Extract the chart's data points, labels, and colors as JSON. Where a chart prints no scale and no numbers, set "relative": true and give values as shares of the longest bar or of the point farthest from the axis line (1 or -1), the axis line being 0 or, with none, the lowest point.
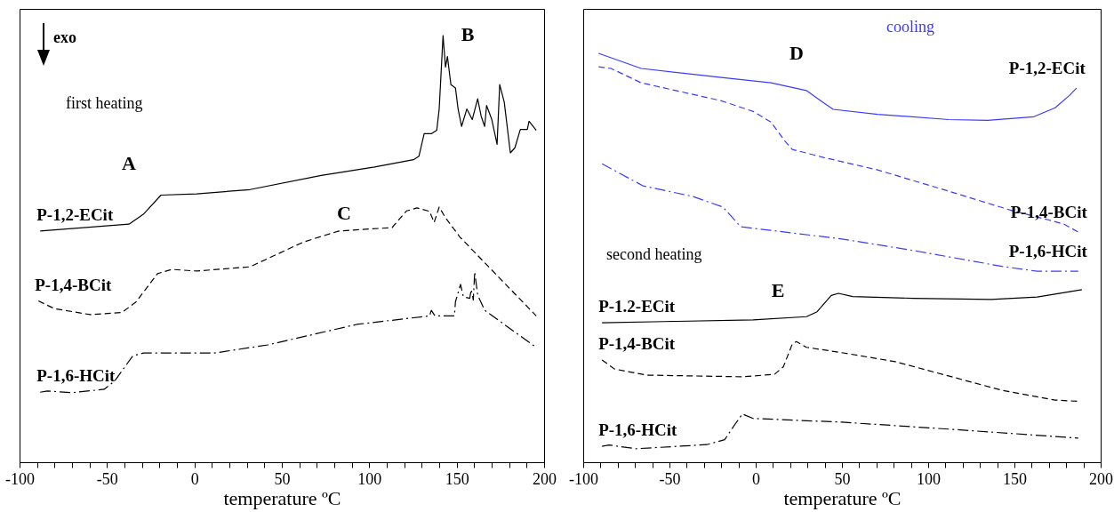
{
  "chart_data": [
    {
      "type": "line",
      "relative": true,
      "xlabel": "temperature ºC",
      "xlim": [
        -100,
        200
      ],
      "xticks": [
        -100,
        {
          "value": -90,
          "label": null
        },
        {
          "value": -80,
          "label": null
        },
        {
          "value": -70,
          "label": null
        },
        {
          "value": -60,
          "label": null
        },
        -50,
        {
          "value": -40,
          "label": null
        },
        {
          "value": -30,
          "label": null
        },
        {
          "value": -20,
          "label": null
        },
        {
          "value": -10,
          "label": null
        },
        0,
        {
          "value": 10,
          "label": null
        },
        {
          "value": 20,
          "label": null
        },
        {
          "value": 30,
          "label": null
        },
        {
          "value": 40,
          "label": null
        },
        50,
        {
          "value": 60,
          "label": null
        },
        {
          "value": 70,
          "label": null
        },
        {
          "value": 80,
          "label": null
        },
        {
          "value": 90,
          "label": null
        },
        100,
        {
          "value": 110,
          "label": null
        },
        {
          "value": 120,
          "label": null
        },
        {
          "value": 130,
          "label": null
        },
        {
          "value": 140,
          "label": null
        },
        150,
        {
          "value": 160,
          "label": null
        },
        {
          "value": 170,
          "label": null
        },
        {
          "value": 180,
          "label": null
        },
        {
          "value": 190,
          "label": null
        },
        200
      ],
      "annotations": [
        "exo",
        "first heating",
        "A",
        "B",
        "C"
      ],
      "series": [
        {
          "name": "P-1,2-ECit",
          "color": "#000000",
          "line_style": "solid",
          "x": [
            -88.2,
            -37.4,
            -29.2,
            -19.1,
            1.3,
            31.8,
            72.5,
            103,
            125.3,
            128.4,
            131.4,
            135.5,
            138.6,
            140,
            142.2,
            143.6,
            144.7,
            146.7,
            149.3,
            150.8,
            152.8,
            155.8,
            158.9,
            162,
            164,
            166,
            167.1,
            170.1,
            173.1,
            174.6,
            177.2,
            180.7,
            183.3,
            186.4,
            190.4,
            191.4,
            195.5
          ],
          "values": [
            0.542,
            0.558,
            0.581,
            0.626,
            0.629,
            0.639,
            0.672,
            0.692,
            0.709,
            0.717,
            0.77,
            0.77,
            0.778,
            0.828,
            1.0,
            0.926,
            0.951,
            0.885,
            0.877,
            0.828,
            0.787,
            0.828,
            0.803,
            0.852,
            0.811,
            0.787,
            0.836,
            0.803,
            0.745,
            0.885,
            0.844,
            0.725,
            0.737,
            0.78,
            0.78,
            0.799,
            0.778
          ]
        },
        {
          "name": "P-1,4-BCit",
          "color": "#000000",
          "line_style": "dashed",
          "x": [
            -89.2,
            -80.1,
            -59.7,
            -41.4,
            -33.3,
            -21.1,
            -13,
            1.3,
            31.8,
            62.3,
            82.6,
            113.1,
            121.3,
            127.4,
            134.5,
            137.1,
            140,
            143.6,
            151.8,
            174.2,
            195.5
          ],
          "values": [
            0.378,
            0.36,
            0.346,
            0.351,
            0.376,
            0.442,
            0.452,
            0.448,
            0.458,
            0.516,
            0.542,
            0.55,
            0.589,
            0.596,
            0.588,
            0.562,
            0.598,
            0.573,
            0.528,
            0.433,
            0.343
          ]
        },
        {
          "name": "P-1,6-HCit",
          "color": "#000000",
          "line_style": "dashdot",
          "x": [
            -88.2,
            -84.1,
            -69.9,
            -51.6,
            -45.5,
            -35.3,
            -29.2,
            11.5,
            42,
            92.8,
            134.5,
            135.5,
            137.6,
            148.7,
            149.3,
            152.2,
            153.8,
            157.5,
            158.3,
            159.5,
            160.3,
            162,
            166,
            195.5
          ],
          "values": [
            0.164,
            0.167,
            0.163,
            0.171,
            0.191,
            0.249,
            0.256,
            0.256,
            0.275,
            0.323,
            0.343,
            0.356,
            0.343,
            0.343,
            0.376,
            0.417,
            0.388,
            0.384,
            0.405,
            0.38,
            0.446,
            0.392,
            0.356,
            0.269
          ]
        }
      ]
    },
    {
      "type": "line",
      "relative": true,
      "xlabel": "temperature ºC",
      "xlim": [
        -100,
        200
      ],
      "xticks": [
        -100,
        {
          "value": -90,
          "label": null
        },
        {
          "value": -80,
          "label": null
        },
        {
          "value": -70,
          "label": null
        },
        {
          "value": -60,
          "label": null
        },
        -50,
        {
          "value": -40,
          "label": null
        },
        {
          "value": -30,
          "label": null
        },
        {
          "value": -20,
          "label": null
        },
        {
          "value": -10,
          "label": null
        },
        0,
        {
          "value": 10,
          "label": null
        },
        {
          "value": 20,
          "label": null
        },
        {
          "value": 30,
          "label": null
        },
        {
          "value": 40,
          "label": null
        },
        50,
        {
          "value": 60,
          "label": null
        },
        {
          "value": 70,
          "label": null
        },
        {
          "value": 80,
          "label": null
        },
        {
          "value": 90,
          "label": null
        },
        100,
        {
          "value": 110,
          "label": null
        },
        {
          "value": 120,
          "label": null
        },
        {
          "value": 130,
          "label": null
        },
        {
          "value": 140,
          "label": null
        },
        150,
        {
          "value": 160,
          "label": null
        },
        {
          "value": 170,
          "label": null
        },
        {
          "value": 180,
          "label": null
        },
        {
          "value": 190,
          "label": null
        },
        200
      ],
      "annotations": [
        "cooling",
        "second heating",
        "D",
        "E"
      ],
      "series": [
        {
          "name": "P-1,2-ECit",
          "color": "#3a3aff",
          "line_style": "solid",
          "x": [
            -91.1,
            -66.4,
            -20,
            8.8,
            29.4,
            37.6,
            44.9,
            70.6,
            111.8,
            134.5,
            161.3,
            173.6,
            181.9,
            186
          ],
          "values": [
            1.0,
            0.963,
            0.941,
            0.928,
            0.909,
            0.884,
            0.863,
            0.851,
            0.838,
            0.836,
            0.845,
            0.867,
            0.897,
            0.915
          ]
        },
        {
          "name": "P-1,4-BCit",
          "color": "#3a3aff",
          "line_style": "dashed",
          "x": [
            -91.1,
            -83.9,
            -66.4,
            -20,
            -1.5,
            8.8,
            17,
            21.2,
            39.7,
            70.6,
            111.8,
            148.9,
            169.5,
            178.8,
            187
          ],
          "values": [
            0.967,
            0.963,
            0.928,
            0.884,
            0.858,
            0.832,
            0.785,
            0.765,
            0.745,
            0.715,
            0.663,
            0.615,
            0.593,
            0.582,
            0.563
          ]
        },
        {
          "name": "P-1,6-HCit",
          "color": "#3a3aff",
          "line_style": "dashdot",
          "x": [
            -89.1,
            -65.4,
            -36.5,
            -19,
            -8.7,
            8.8,
            50,
            91.2,
            142.7,
            163.3,
            187
          ],
          "values": [
            0.73,
            0.676,
            0.65,
            0.624,
            0.576,
            0.567,
            0.546,
            0.518,
            0.479,
            0.467,
            0.467
          ]
        },
        {
          "name": "P-1.2-ECit",
          "color": "#000000",
          "line_style": "solid",
          "x": [
            -89.1,
            -53,
            -1.5,
            29.4,
            35.6,
            43.8,
            48,
            56.2,
            91.2,
            136.5,
            163.3,
            189.1
          ],
          "values": [
            0.341,
            0.344,
            0.348,
            0.356,
            0.368,
            0.408,
            0.413,
            0.405,
            0.401,
            0.398,
            0.404,
            0.422
          ]
        },
        {
          "name": "P-1,4-BCit",
          "color": "#000000",
          "line_style": "dashed",
          "x": [
            -89.1,
            -81.9,
            -63.3,
            -7.7,
            10.9,
            16,
            21.2,
            23.6,
            29.4,
            50,
            80.9,
            111.8,
            142.7,
            173.6,
            187
          ],
          "values": [
            0.25,
            0.228,
            0.213,
            0.209,
            0.215,
            0.233,
            0.289,
            0.295,
            0.281,
            0.268,
            0.246,
            0.211,
            0.176,
            0.152,
            0.149
          ]
        },
        {
          "name": "P-1,6-HCit",
          "color": "#000000",
          "line_style": "dashdot",
          "x": [
            -89.1,
            -85,
            -69.5,
            -28.3,
            -18,
            -11.8,
            -7.7,
            -1.5,
            50,
            111.8,
            187
          ],
          "values": [
            0.039,
            0.042,
            0.033,
            0.043,
            0.055,
            0.094,
            0.118,
            0.107,
            0.098,
            0.081,
            0.059
          ]
        }
      ]
    }
  ]
}
